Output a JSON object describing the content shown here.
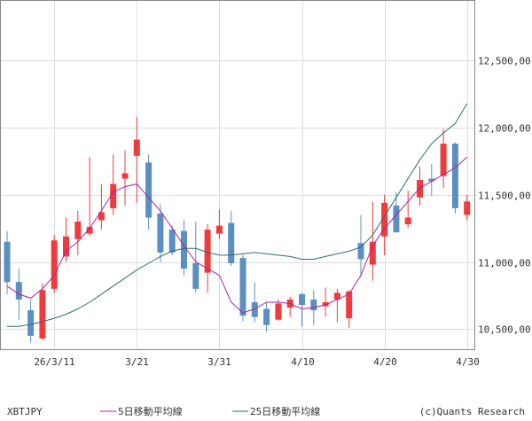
{
  "footer": {
    "symbol": "XBTJPY",
    "ma5_label": "5日移動平均線",
    "ma25_label": "25日移動平均線",
    "credit": "(c)Quants Research"
  },
  "colors": {
    "up": "#ef3b3b",
    "down": "#5b8fc1",
    "ma5": "#aa22aa",
    "ma25": "#2e6e6e",
    "grid": "#dddddd",
    "border": "#888888"
  },
  "chart_data": {
    "type": "candlestick",
    "y_axis_side": "right",
    "ylim": [
      10350,
      12950
    ],
    "y_ticks": [
      10500,
      11000,
      11500,
      12000,
      12500
    ],
    "y_tick_labels": [
      "10,500,00",
      "11,000,00",
      "11,500,00",
      "12,000,00",
      "12,500,00"
    ],
    "x_tick_labels": [
      {
        "index": 4,
        "label": "26/3/11"
      },
      {
        "index": 11,
        "label": "3/21"
      },
      {
        "index": 18,
        "label": "3/31"
      },
      {
        "index": 25,
        "label": "4/10"
      },
      {
        "index": 32,
        "label": "4/20"
      },
      {
        "index": 39,
        "label": "4/30"
      }
    ],
    "series": [
      {
        "name": "5日移動平均線",
        "color": "#aa22aa"
      },
      {
        "name": "25日移動平均線",
        "color": "#2e6e6e"
      }
    ],
    "candles": [
      {
        "o": 11150,
        "h": 11230,
        "l": 10760,
        "c": 10850
      },
      {
        "o": 10850,
        "h": 10950,
        "l": 10570,
        "c": 10720
      },
      {
        "o": 10640,
        "h": 10720,
        "l": 10400,
        "c": 10450
      },
      {
        "o": 10430,
        "h": 10840,
        "l": 10420,
        "c": 10790
      },
      {
        "o": 10800,
        "h": 11200,
        "l": 10770,
        "c": 11160
      },
      {
        "o": 11040,
        "h": 11330,
        "l": 11000,
        "c": 11190
      },
      {
        "o": 11170,
        "h": 11380,
        "l": 11050,
        "c": 11300
      },
      {
        "o": 11210,
        "h": 11780,
        "l": 11190,
        "c": 11260
      },
      {
        "o": 11310,
        "h": 11580,
        "l": 11240,
        "c": 11370
      },
      {
        "o": 11400,
        "h": 11800,
        "l": 11350,
        "c": 11580
      },
      {
        "o": 11620,
        "h": 11830,
        "l": 11420,
        "c": 11660
      },
      {
        "o": 11790,
        "h": 12080,
        "l": 11440,
        "c": 11910
      },
      {
        "o": 11740,
        "h": 11800,
        "l": 11240,
        "c": 11330
      },
      {
        "o": 11360,
        "h": 11430,
        "l": 11000,
        "c": 11070
      },
      {
        "o": 11240,
        "h": 11270,
        "l": 11050,
        "c": 11070
      },
      {
        "o": 11230,
        "h": 11310,
        "l": 10900,
        "c": 10950
      },
      {
        "o": 10990,
        "h": 11300,
        "l": 10770,
        "c": 10800
      },
      {
        "o": 10920,
        "h": 11280,
        "l": 10770,
        "c": 11240
      },
      {
        "o": 11210,
        "h": 11390,
        "l": 11170,
        "c": 11270
      },
      {
        "o": 11290,
        "h": 11380,
        "l": 10970,
        "c": 10990
      },
      {
        "o": 11030,
        "h": 11050,
        "l": 10560,
        "c": 10600
      },
      {
        "o": 10700,
        "h": 10850,
        "l": 10550,
        "c": 10590
      },
      {
        "o": 10650,
        "h": 10700,
        "l": 10480,
        "c": 10530
      },
      {
        "o": 10570,
        "h": 10720,
        "l": 10560,
        "c": 10690
      },
      {
        "o": 10660,
        "h": 10740,
        "l": 10590,
        "c": 10720
      },
      {
        "o": 10760,
        "h": 10770,
        "l": 10520,
        "c": 10680
      },
      {
        "o": 10720,
        "h": 10790,
        "l": 10530,
        "c": 10640
      },
      {
        "o": 10670,
        "h": 10810,
        "l": 10590,
        "c": 10700
      },
      {
        "o": 10720,
        "h": 10800,
        "l": 10550,
        "c": 10770
      },
      {
        "o": 10580,
        "h": 10790,
        "l": 10510,
        "c": 10780
      },
      {
        "o": 11140,
        "h": 11350,
        "l": 10890,
        "c": 11020
      },
      {
        "o": 10980,
        "h": 11450,
        "l": 10860,
        "c": 11150
      },
      {
        "o": 11190,
        "h": 11500,
        "l": 11050,
        "c": 11440
      },
      {
        "o": 11420,
        "h": 11520,
        "l": 11220,
        "c": 11220
      },
      {
        "o": 11280,
        "h": 11530,
        "l": 11250,
        "c": 11330
      },
      {
        "o": 11480,
        "h": 11710,
        "l": 11420,
        "c": 11610
      },
      {
        "o": 11620,
        "h": 11730,
        "l": 11490,
        "c": 11600
      },
      {
        "o": 11640,
        "h": 11990,
        "l": 11550,
        "c": 11880
      },
      {
        "o": 11880,
        "h": 11890,
        "l": 11360,
        "c": 11400
      },
      {
        "o": 11350,
        "h": 11500,
        "l": 11310,
        "c": 11450
      }
    ],
    "ma5": [
      10820,
      10760,
      10730,
      10800,
      10900,
      11080,
      11150,
      11250,
      11380,
      11520,
      11560,
      11580,
      11480,
      11380,
      11250,
      11120,
      11000,
      10950,
      10900,
      10700,
      10620,
      10650,
      10700,
      10700,
      10690,
      10650,
      10660,
      10680,
      10720,
      10760,
      10900,
      11120,
      11250,
      11350,
      11450,
      11550,
      11600,
      11650,
      11700,
      11780
    ],
    "ma25": [
      10520,
      10520,
      10535,
      10555,
      10580,
      10610,
      10650,
      10700,
      10760,
      10820,
      10880,
      10940,
      10990,
      11040,
      11080,
      11100,
      11100,
      11070,
      11050,
      11050,
      11060,
      11070,
      11060,
      11050,
      11040,
      11020,
      11020,
      11040,
      11060,
      11080,
      11110,
      11200,
      11340,
      11480,
      11620,
      11760,
      11880,
      11960,
      12030,
      12180
    ]
  }
}
